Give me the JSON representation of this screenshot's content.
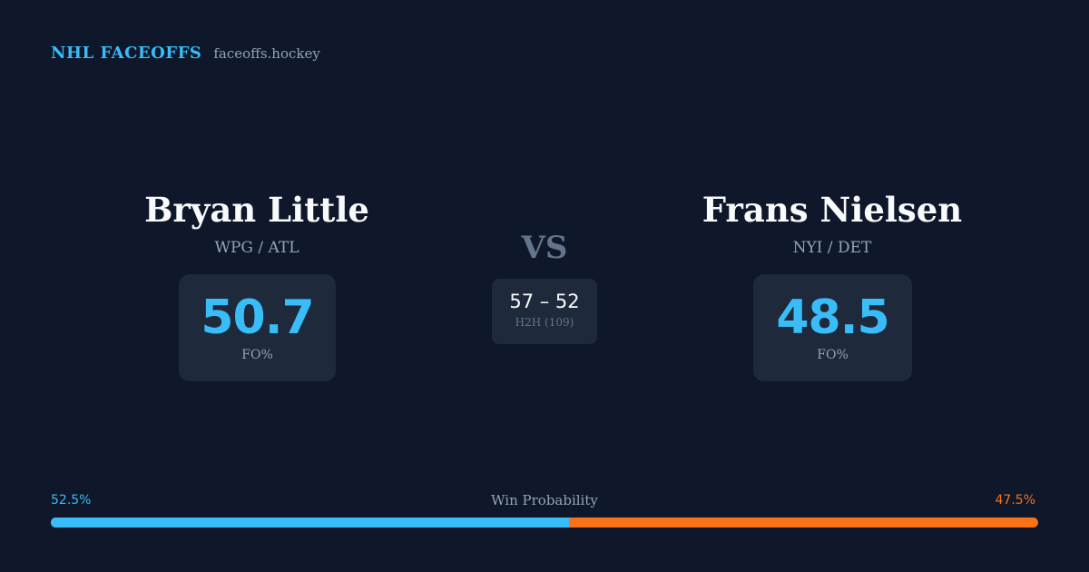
{
  "header": {
    "brand": "NHL FACEOFFS",
    "site": "faceoffs.hockey"
  },
  "players": [
    {
      "name": "Bryan Little",
      "teams": "WPG / ATL",
      "fo_pct": "50.7",
      "fo_label": "FO%"
    },
    {
      "name": "Frans Nielsen",
      "teams": "NYI / DET",
      "fo_pct": "48.5",
      "fo_label": "FO%"
    }
  ],
  "versus": {
    "label": "VS",
    "h2h_score": "57 – 52",
    "h2h_label": "H2H (109)"
  },
  "win_probability": {
    "title": "Win Probability",
    "left_label": "52.5%",
    "right_label": "47.5%",
    "left_fraction": 0.525,
    "left_color": "#38bdf8",
    "right_color": "#f97316"
  },
  "colors": {
    "background": "#0f172a",
    "card": "#1e293b",
    "accent": "#38bdf8",
    "secondary_accent": "#f97316"
  }
}
